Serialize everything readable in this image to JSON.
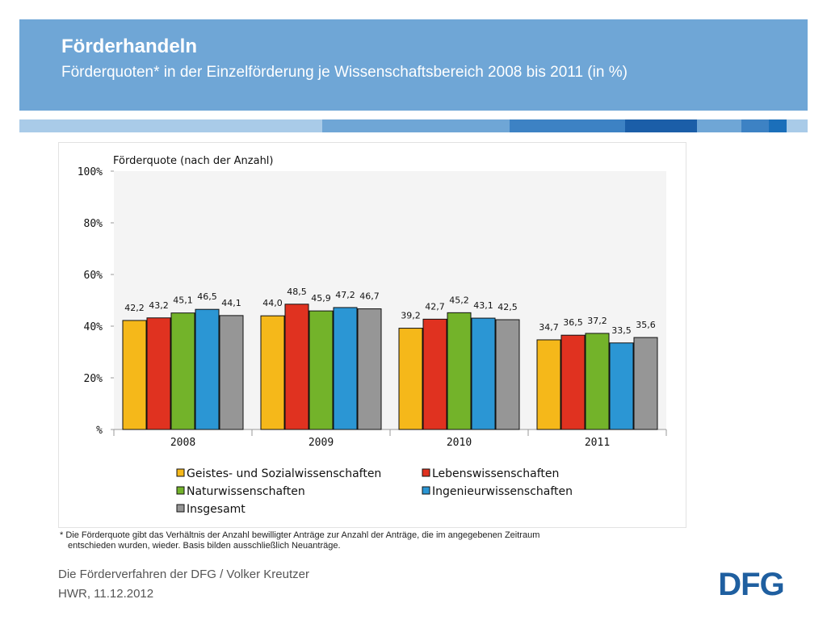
{
  "header": {
    "title": "Förderhandeln",
    "subtitle": "Förderquoten* in der Einzelförderung je Wissenschaftsbereich 2008 bis 2011 (in %)"
  },
  "colors": {
    "header_bg": "#6fa6d6",
    "stripe_segments": [
      "#a9cbe8",
      "#6fa6d6",
      "#3d82c4",
      "#1b5ea8",
      "#6fa6d6",
      "#3d82c4",
      "#1b6fba",
      "#a9cbe8"
    ],
    "series": [
      "#f5b81a",
      "#e03220",
      "#73b32a",
      "#2b96d4",
      "#969696"
    ]
  },
  "chart_data": {
    "type": "bar",
    "title": "Förderquote (nach der Anzahl)",
    "categories": [
      "2008",
      "2009",
      "2010",
      "2011"
    ],
    "series": [
      {
        "name": "Geistes- und Sozialwissenschaften",
        "values": [
          42.2,
          44.0,
          39.2,
          34.7
        ]
      },
      {
        "name": "Lebenswissenschaften",
        "values": [
          43.2,
          48.5,
          42.7,
          36.5
        ]
      },
      {
        "name": "Naturwissenschaften",
        "values": [
          45.1,
          45.9,
          45.2,
          37.2
        ]
      },
      {
        "name": "Ingenieurwissenschaften",
        "values": [
          46.5,
          47.2,
          43.1,
          33.5
        ]
      },
      {
        "name": "Insgesamt",
        "values": [
          44.1,
          46.7,
          42.5,
          35.6
        ]
      }
    ],
    "value_labels": [
      [
        "42,2",
        "44,0",
        "39,2",
        "34,7"
      ],
      [
        "43,2",
        "48,5",
        "42,7",
        "36,5"
      ],
      [
        "45,1",
        "45,9",
        "45,2",
        "37,2"
      ],
      [
        "46,5",
        "47,2",
        "43,1",
        "33,5"
      ],
      [
        "44,1",
        "46,7",
        "42,5",
        "35,6"
      ]
    ],
    "yticks": [
      0,
      20,
      40,
      60,
      80,
      100
    ],
    "ytick_labels": [
      "%",
      "20%",
      "40%",
      "60%",
      "80%",
      "100%"
    ],
    "ylim": [
      0,
      100
    ],
    "xlabel": "",
    "ylabel": "",
    "grid": false,
    "legend_position": "bottom"
  },
  "footnote": {
    "line1": "* Die Förderquote gibt das Verhältnis der Anzahl bewilligter Anträge zur Anzahl der Anträge, die im angegebenen Zeitraum",
    "line2": "entschieden wurden, wieder. Basis bilden ausschließlich Neuanträge."
  },
  "footer": {
    "line1": "Die Förderverfahren der DFG / Volker Kreutzer",
    "line2": "HWR, 11.12.2012"
  },
  "logo": {
    "text": "DFG",
    "color": "#1f5fa0"
  }
}
